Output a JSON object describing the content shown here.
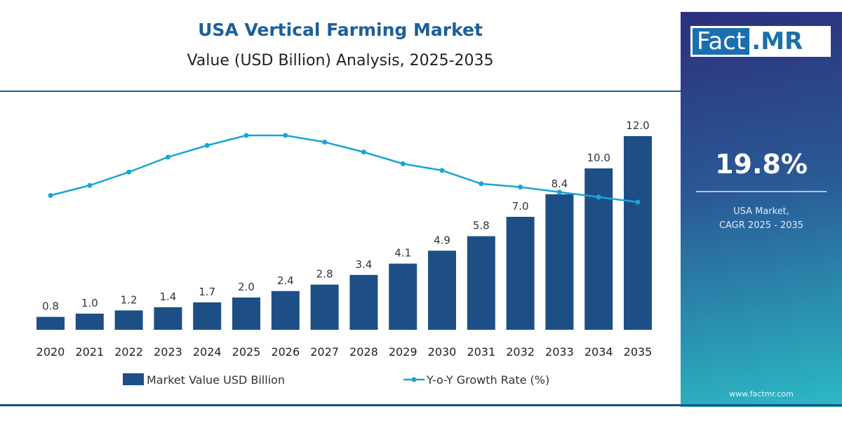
{
  "chart_data": {
    "type": "bar",
    "title": "USA Vertical Farming Market",
    "subtitle": "Value (USD Billion) Analysis, 2025-2035",
    "categories": [
      "2020",
      "2021",
      "2022",
      "2023",
      "2024",
      "2025",
      "2026",
      "2027",
      "2028",
      "2029",
      "2030",
      "2031",
      "2032",
      "2033",
      "2034",
      "2035"
    ],
    "series": [
      {
        "name": "Market Value USD Billion",
        "type": "bar",
        "color": "#1d4f86",
        "values": [
          0.8,
          1.0,
          1.2,
          1.4,
          1.7,
          2.0,
          2.4,
          2.8,
          3.4,
          4.1,
          4.9,
          5.8,
          7.0,
          8.4,
          10.0,
          12.0
        ]
      },
      {
        "name": "Y-o-Y Growth Rate (%)",
        "type": "line",
        "color": "#1ba3d9",
        "values": [
          18.4,
          19.0,
          19.8,
          20.7,
          21.4,
          22.0,
          22.0,
          21.6,
          21.0,
          20.3,
          19.9,
          19.1,
          18.9,
          18.6,
          18.3,
          18.0
        ]
      }
    ],
    "ylim": [
      0,
      12.5
    ],
    "grid": false,
    "legend": "bottom"
  },
  "panel": {
    "logo_left": "Fact",
    "logo_right": ".MR",
    "cagr_value": "19.8%",
    "cagr_label_1": "USA Market,",
    "cagr_label_2": "CAGR 2025 - 2035",
    "website": "www.factmr.com"
  }
}
